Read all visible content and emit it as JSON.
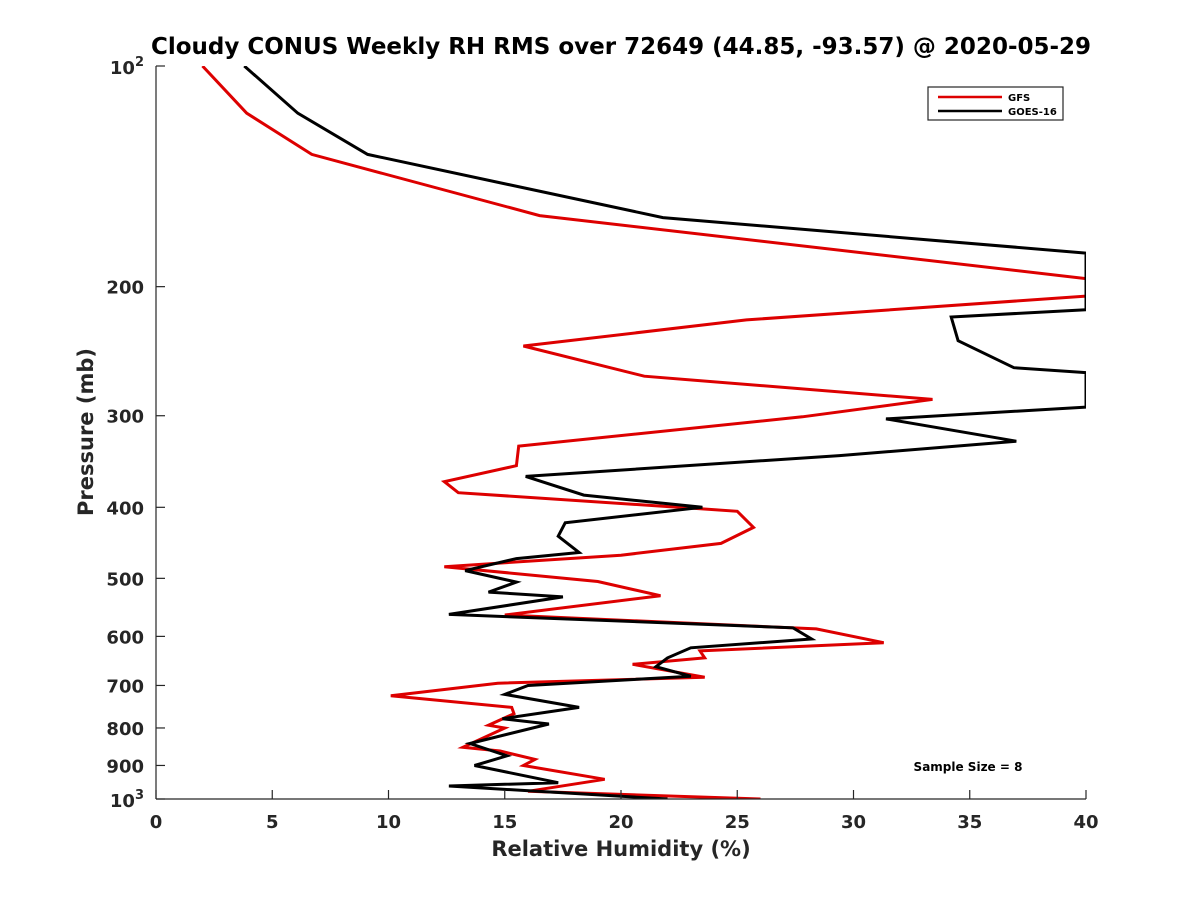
{
  "chart_data": {
    "type": "line",
    "title": "Cloudy CONUS Weekly RH RMS over 72649 (44.85, -93.57) @ 2020-05-29",
    "xlabel": "Relative Humidity (%)",
    "ylabel": "Pressure (mb)",
    "xlim": [
      0,
      40
    ],
    "ylim": [
      100,
      1000
    ],
    "y_scale": "log",
    "y_reversed": true,
    "x_ticks": [
      "0",
      "5",
      "10",
      "15",
      "20",
      "25",
      "30",
      "35",
      "40"
    ],
    "y_ticks": [
      {
        "value": 100,
        "base": "10",
        "exp": "2"
      },
      {
        "value": 200,
        "label": "200"
      },
      {
        "value": 300,
        "label": "300"
      },
      {
        "value": 400,
        "label": "400"
      },
      {
        "value": 500,
        "label": "500"
      },
      {
        "value": 600,
        "label": "600"
      },
      {
        "value": 700,
        "label": "700"
      },
      {
        "value": 800,
        "label": "800"
      },
      {
        "value": 900,
        "label": "900"
      },
      {
        "value": 1000,
        "base": "10",
        "exp": "3"
      }
    ],
    "legend_position": "top-right",
    "grid": false,
    "annotation": "Sample Size = 8",
    "series": [
      {
        "name": "GFS",
        "color": "#dd0000",
        "points": [
          [
            2.0,
            100
          ],
          [
            3.9,
            116
          ],
          [
            6.7,
            132
          ],
          [
            16.5,
            160
          ],
          [
            40,
            195
          ],
          [
            40,
            206
          ],
          [
            25.4,
            222
          ],
          [
            15.8,
            241
          ],
          [
            21.0,
            265
          ],
          [
            33.4,
            285
          ],
          [
            27.8,
            301
          ],
          [
            15.6,
            330
          ],
          [
            15.5,
            351
          ],
          [
            12.4,
            369
          ],
          [
            13.0,
            382
          ],
          [
            23.5,
            402
          ],
          [
            25.0,
            405
          ],
          [
            25.7,
            426
          ],
          [
            24.3,
            448
          ],
          [
            20.0,
            465
          ],
          [
            12.4,
            482
          ],
          [
            19.0,
            505
          ],
          [
            21.7,
            528
          ],
          [
            15.0,
            561
          ],
          [
            28.4,
            586
          ],
          [
            31.3,
            612
          ],
          [
            23.4,
            628
          ],
          [
            23.6,
            642
          ],
          [
            20.5,
            655
          ],
          [
            23.6,
            682
          ],
          [
            14.7,
            695
          ],
          [
            10.1,
            723
          ],
          [
            15.3,
            750
          ],
          [
            15.4,
            765
          ],
          [
            14.3,
            793
          ],
          [
            15.0,
            800
          ],
          [
            13.2,
            850
          ],
          [
            14.8,
            860
          ],
          [
            16.3,
            883
          ],
          [
            15.8,
            900
          ],
          [
            19.3,
            940
          ],
          [
            16.0,
            976
          ],
          [
            26.0,
            1000
          ]
        ]
      },
      {
        "name": "GOES-16",
        "color": "#000000",
        "points": [
          [
            3.8,
            100
          ],
          [
            6.1,
            116
          ],
          [
            9.1,
            132
          ],
          [
            21.8,
            161
          ],
          [
            40,
            180
          ],
          [
            40,
            215
          ],
          [
            34.2,
            220
          ],
          [
            34.5,
            237
          ],
          [
            36.9,
            258
          ],
          [
            40,
            262
          ],
          [
            40,
            292
          ],
          [
            31.4,
            303
          ],
          [
            37.0,
            325
          ],
          [
            29.4,
            340
          ],
          [
            15.9,
            363
          ],
          [
            18.4,
            385
          ],
          [
            23.5,
            400
          ],
          [
            17.6,
            420
          ],
          [
            17.3,
            438
          ],
          [
            18.2,
            461
          ],
          [
            15.5,
            470
          ],
          [
            13.3,
            488
          ],
          [
            15.5,
            506
          ],
          [
            14.3,
            522
          ],
          [
            17.5,
            530
          ],
          [
            12.6,
            560
          ],
          [
            27.4,
            584
          ],
          [
            28.2,
            605
          ],
          [
            23.0,
            622
          ],
          [
            22.0,
            642
          ],
          [
            21.5,
            660
          ],
          [
            23.0,
            680
          ],
          [
            16.0,
            700
          ],
          [
            15.0,
            720
          ],
          [
            18.2,
            750
          ],
          [
            14.9,
            777
          ],
          [
            16.9,
            790
          ],
          [
            13.5,
            840
          ],
          [
            15.1,
            873
          ],
          [
            13.7,
            900
          ],
          [
            17.3,
            950
          ],
          [
            12.6,
            960
          ],
          [
            22.0,
            1000
          ]
        ]
      }
    ]
  }
}
